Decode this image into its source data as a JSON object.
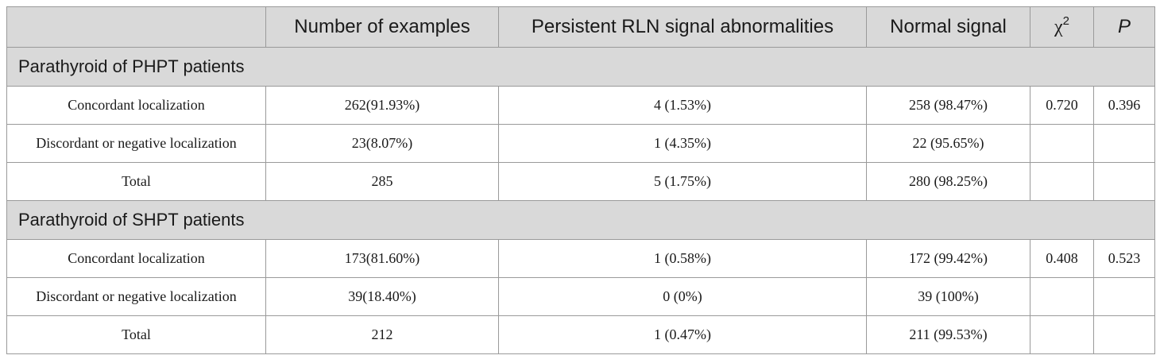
{
  "header": {
    "col1": "",
    "col2": "Number of examples",
    "col3": "Persistent RLN signal abnormalities",
    "col4": "Normal signal",
    "col5_base": "χ",
    "col5_sup": "2",
    "col6": "P"
  },
  "groups": [
    {
      "title": "Parathyroid of PHPT patients",
      "rows": [
        {
          "label": "Concordant localization",
          "examples": "262(91.93%)",
          "abnormal": "4 (1.53%)",
          "normal": "258 (98.47%)",
          "chi": "0.720",
          "p": "0.396"
        },
        {
          "label": "Discordant or negative localization",
          "examples": "23(8.07%)",
          "abnormal": "1 (4.35%)",
          "normal": "22 (95.65%)",
          "chi": "",
          "p": ""
        },
        {
          "label": "Total",
          "examples": "285",
          "abnormal": "5 (1.75%)",
          "normal": "280 (98.25%)",
          "chi": "",
          "p": ""
        }
      ]
    },
    {
      "title": "Parathyroid of SHPT patients",
      "rows": [
        {
          "label": "Concordant localization",
          "examples": "173(81.60%)",
          "abnormal": "1 (0.58%)",
          "normal": "172 (99.42%)",
          "chi": "0.408",
          "p": "0.523"
        },
        {
          "label": "Discordant or negative localization",
          "examples": "39(18.40%)",
          "abnormal": "0 (0%)",
          "normal": "39 (100%)",
          "chi": "",
          "p": ""
        },
        {
          "label": "Total",
          "examples": "212",
          "abnormal": "1 (0.47%)",
          "normal": "211 (99.53%)",
          "chi": "",
          "p": ""
        }
      ]
    }
  ]
}
